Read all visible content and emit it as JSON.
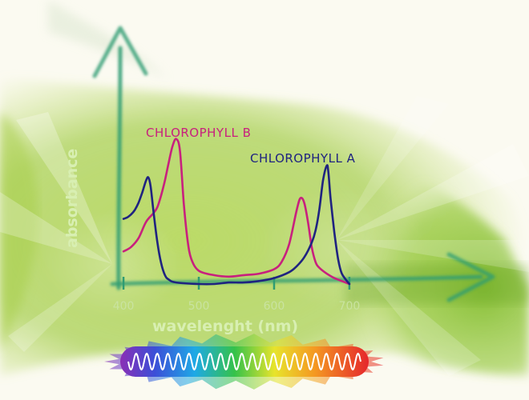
{
  "chart_data": {
    "type": "line",
    "title": "",
    "xlabel": "wavelenght (nm)",
    "ylabel": "absorbance",
    "x_ticks": [
      400,
      500,
      600,
      700
    ],
    "xlim": [
      385,
      715
    ],
    "ylim": [
      0,
      1
    ],
    "grid": false,
    "series": [
      {
        "name": "CHLOROPHYLL B",
        "color": "#c8207e",
        "x": [
          400,
          410,
          420,
          430,
          440,
          445,
          450,
          455,
          460,
          465,
          470,
          475,
          480,
          485,
          490,
          500,
          520,
          540,
          560,
          580,
          600,
          610,
          620,
          630,
          635,
          640,
          645,
          650,
          655,
          660,
          670,
          680,
          690,
          700
        ],
        "y": [
          0.22,
          0.25,
          0.31,
          0.42,
          0.48,
          0.52,
          0.6,
          0.7,
          0.82,
          0.93,
          0.98,
          0.9,
          0.55,
          0.3,
          0.17,
          0.09,
          0.06,
          0.05,
          0.06,
          0.07,
          0.1,
          0.15,
          0.27,
          0.5,
          0.58,
          0.55,
          0.42,
          0.25,
          0.15,
          0.11,
          0.07,
          0.04,
          0.02,
          0.0
        ]
      },
      {
        "name": "CHLOROPHYLL A",
        "color": "#1f2380",
        "x": [
          400,
          405,
          410,
          415,
          420,
          425,
          430,
          433,
          436,
          440,
          445,
          450,
          455,
          460,
          470,
          500,
          520,
          540,
          560,
          580,
          600,
          620,
          630,
          640,
          650,
          655,
          660,
          665,
          670,
          672,
          675,
          680,
          685,
          690,
          700
        ],
        "y": [
          0.44,
          0.45,
          0.47,
          0.5,
          0.55,
          0.62,
          0.7,
          0.72,
          0.66,
          0.48,
          0.28,
          0.14,
          0.06,
          0.03,
          0.01,
          0.0,
          0.0,
          0.01,
          0.01,
          0.02,
          0.04,
          0.08,
          0.12,
          0.18,
          0.28,
          0.36,
          0.5,
          0.7,
          0.8,
          0.76,
          0.58,
          0.35,
          0.17,
          0.07,
          0.0
        ]
      }
    ],
    "spectrum_bar": "visible light spectrum (violet to red)"
  },
  "colors": {
    "background": "#fbfaf1",
    "wash_green": "#9fcd3f",
    "axis": "#2aa06a",
    "axis_title": "#d8efb2"
  }
}
